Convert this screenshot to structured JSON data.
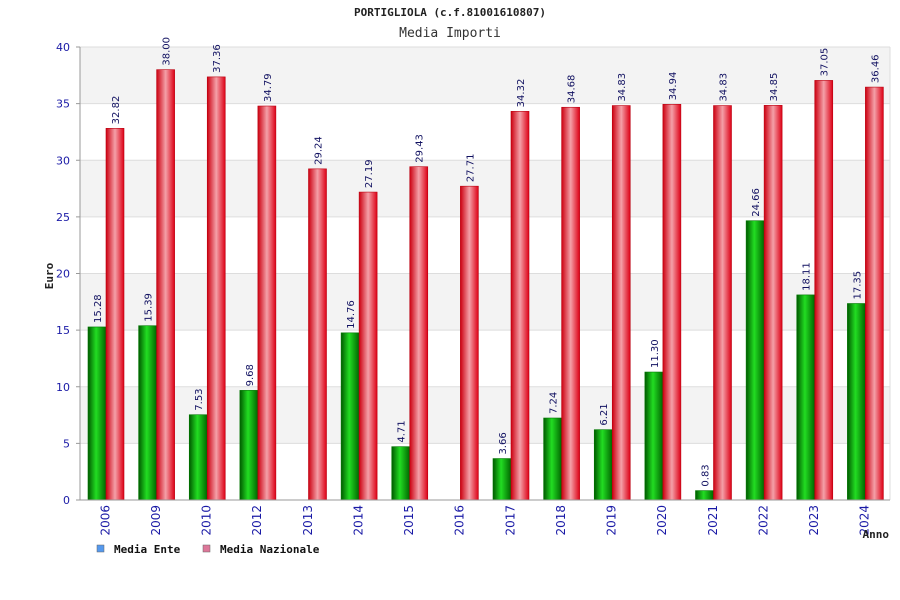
{
  "chart_data": {
    "type": "bar",
    "title": "PORTIGLIOLA (c.f.81001610807)",
    "subtitle": "Media Importi",
    "xlabel": "Anno",
    "ylabel": "Euro",
    "ylim": [
      0,
      40
    ],
    "yticks": [
      "0",
      "5",
      "10",
      "15",
      "20",
      "25",
      "30",
      "35",
      "40"
    ],
    "grid": true,
    "legend_position": "bottom-left",
    "categories": [
      "2006",
      "2009",
      "2010",
      "2012",
      "2013",
      "2014",
      "2015",
      "2016",
      "2017",
      "2018",
      "2019",
      "2020",
      "2021",
      "2022",
      "2023",
      "2024"
    ],
    "series": [
      {
        "name": "Media Ente",
        "color": "#00aa00",
        "legend_color": "#5599ee",
        "values": [
          15.28,
          15.39,
          7.53,
          9.68,
          null,
          14.76,
          4.71,
          null,
          3.66,
          7.24,
          6.21,
          11.3,
          0.83,
          24.66,
          18.11,
          17.35
        ],
        "labels": [
          "15.28",
          "15.39",
          "7.53",
          "9.68",
          "",
          "14.76",
          "4.71",
          "",
          "3.66",
          "7.24",
          "6.21",
          "11.30",
          "0.83",
          "24.66",
          "18.11",
          "17.35"
        ]
      },
      {
        "name": "Media Nazionale",
        "color": "#ee1122",
        "legend_color": "#dd7799",
        "values": [
          32.82,
          38.0,
          37.36,
          34.79,
          29.24,
          27.19,
          29.43,
          27.71,
          34.32,
          34.68,
          34.83,
          34.94,
          34.83,
          34.85,
          37.05,
          36.46
        ],
        "labels": [
          "32.82",
          "38.00",
          "37.36",
          "34.79",
          "29.24",
          "27.19",
          "29.43",
          "27.71",
          "34.32",
          "34.68",
          "34.83",
          "34.94",
          "34.83",
          "34.85",
          "37.05",
          "36.46"
        ]
      }
    ]
  }
}
